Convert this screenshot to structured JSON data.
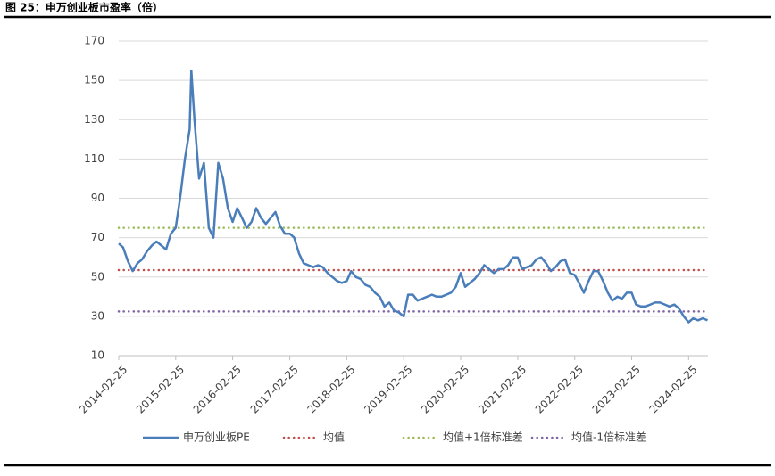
{
  "chart_data": {
    "type": "line",
    "title": "图 25：申万创业板市盈率（倍）",
    "x": [
      "2014-02-25",
      "2014-03-25",
      "2014-04-25",
      "2014-05-25",
      "2014-06-25",
      "2014-07-25",
      "2014-08-25",
      "2014-09-25",
      "2014-10-25",
      "2014-11-25",
      "2014-12-25",
      "2015-01-25",
      "2015-02-25",
      "2015-03-25",
      "2015-04-25",
      "2015-05-25",
      "2015-06-05",
      "2015-06-25",
      "2015-07-25",
      "2015-08-25",
      "2015-09-25",
      "2015-10-25",
      "2015-11-25",
      "2015-12-25",
      "2016-01-25",
      "2016-02-25",
      "2016-03-25",
      "2016-04-25",
      "2016-05-25",
      "2016-06-25",
      "2016-07-25",
      "2016-08-25",
      "2016-09-25",
      "2016-10-25",
      "2016-11-25",
      "2016-12-25",
      "2017-01-25",
      "2017-02-25",
      "2017-03-25",
      "2017-04-25",
      "2017-05-25",
      "2017-06-25",
      "2017-07-25",
      "2017-08-25",
      "2017-09-25",
      "2017-10-25",
      "2017-11-25",
      "2017-12-25",
      "2018-01-25",
      "2018-02-25",
      "2018-03-25",
      "2018-04-25",
      "2018-05-25",
      "2018-06-25",
      "2018-07-25",
      "2018-08-25",
      "2018-09-25",
      "2018-10-25",
      "2018-11-25",
      "2018-12-25",
      "2019-01-25",
      "2019-02-25",
      "2019-03-25",
      "2019-04-25",
      "2019-05-25",
      "2019-06-25",
      "2019-07-25",
      "2019-08-25",
      "2019-09-25",
      "2019-10-25",
      "2019-11-25",
      "2019-12-25",
      "2020-01-25",
      "2020-02-25",
      "2020-03-25",
      "2020-04-25",
      "2020-05-25",
      "2020-06-25",
      "2020-07-25",
      "2020-08-25",
      "2020-09-25",
      "2020-10-25",
      "2020-11-25",
      "2020-12-25",
      "2021-01-25",
      "2021-02-25",
      "2021-03-25",
      "2021-04-25",
      "2021-05-25",
      "2021-06-25",
      "2021-07-25",
      "2021-08-25",
      "2021-09-25",
      "2021-10-25",
      "2021-11-25",
      "2021-12-25",
      "2022-01-25",
      "2022-02-25",
      "2022-03-25",
      "2022-04-25",
      "2022-05-25",
      "2022-06-25",
      "2022-07-25",
      "2022-08-25",
      "2022-09-25",
      "2022-10-25",
      "2022-11-25",
      "2022-12-25",
      "2023-01-25",
      "2023-02-25",
      "2023-03-25",
      "2023-04-25",
      "2023-05-25",
      "2023-06-25",
      "2023-07-25",
      "2023-08-25",
      "2023-09-25",
      "2023-10-25",
      "2023-11-25",
      "2023-12-25",
      "2024-01-25",
      "2024-02-25",
      "2024-03-25",
      "2024-04-25",
      "2024-05-25",
      "2024-06-25"
    ],
    "series": [
      {
        "name": "申万创业板PE",
        "color": "#4a7ebb",
        "values": [
          67,
          65,
          58,
          53,
          57,
          59,
          63,
          66,
          68,
          66,
          64,
          72,
          75,
          90,
          110,
          125,
          155,
          130,
          100,
          108,
          75,
          70,
          108,
          100,
          85,
          78,
          85,
          80,
          75,
          78,
          85,
          80,
          77,
          80,
          83,
          76,
          72,
          72,
          70,
          62,
          57,
          56,
          55,
          56,
          55,
          52,
          50,
          48,
          47,
          48,
          53,
          50,
          49,
          46,
          45,
          42,
          40,
          35,
          37,
          33,
          32,
          30,
          41,
          41,
          38,
          39,
          40,
          41,
          40,
          40,
          41,
          42,
          45,
          52,
          45,
          47,
          49,
          52,
          56,
          54,
          52,
          54,
          54,
          56,
          60,
          60,
          54,
          55,
          56,
          59,
          60,
          57,
          53,
          55,
          58,
          59,
          52,
          51,
          47,
          42,
          48,
          53,
          53,
          48,
          42,
          38,
          40,
          39,
          42,
          42,
          36,
          35,
          35,
          36,
          37,
          37,
          36,
          35,
          36,
          34,
          30,
          27,
          29,
          28,
          29,
          28
        ]
      }
    ],
    "hlines": [
      {
        "name": "均值",
        "color": "#c0504d",
        "value": 53.5
      },
      {
        "name": "均值+1倍标准差",
        "color": "#9bbb59",
        "value": 75
      },
      {
        "name": "均值-1倍标准差",
        "color": "#8064a2",
        "value": 32.5
      }
    ],
    "xlim": [
      "2014-02-25",
      "2024-06-28"
    ],
    "xticks": [
      "2014-02-25",
      "2015-02-25",
      "2016-02-25",
      "2017-02-25",
      "2018-02-25",
      "2019-02-25",
      "2020-02-25",
      "2021-02-25",
      "2022-02-25",
      "2023-02-25",
      "2024-02-25"
    ],
    "ylim": [
      10,
      170
    ],
    "yticks": [
      10,
      30,
      50,
      70,
      90,
      110,
      130,
      150,
      170
    ],
    "grid": true
  }
}
